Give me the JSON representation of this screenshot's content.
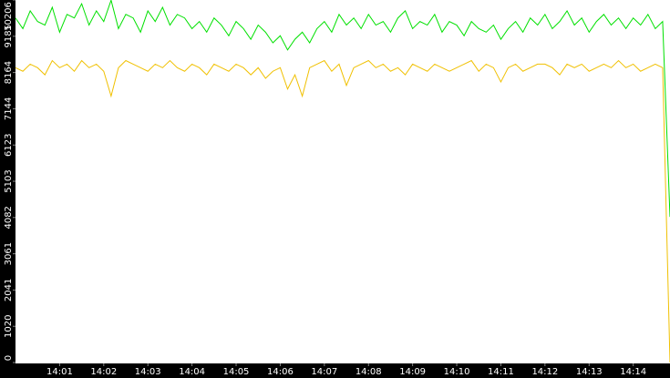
{
  "chart_data": {
    "type": "line",
    "categories": [
      null,
      null,
      null,
      null,
      null,
      null,
      "14:01",
      null,
      null,
      null,
      null,
      null,
      "14:02",
      null,
      null,
      null,
      null,
      null,
      "14:03",
      null,
      null,
      null,
      null,
      null,
      "14:04",
      null,
      null,
      null,
      null,
      null,
      "14:05",
      null,
      null,
      null,
      null,
      null,
      "14:06",
      null,
      null,
      null,
      null,
      null,
      "14:07",
      null,
      null,
      null,
      null,
      null,
      "14:08",
      null,
      null,
      null,
      null,
      null,
      "14:09",
      null,
      null,
      null,
      null,
      null,
      "14:10",
      null,
      null,
      null,
      null,
      null,
      "14:11",
      null,
      null,
      null,
      null,
      null,
      "14:12",
      null,
      null,
      null,
      null,
      null,
      "14:13",
      null,
      null,
      null,
      null,
      null,
      "14:14",
      null,
      null,
      null,
      null,
      null
    ],
    "series": [
      {
        "color": "#00e000",
        "values": [
          9700,
          9400,
          9900,
          9600,
          9500,
          10000,
          9300,
          9800,
          9700,
          10100,
          9500,
          9900,
          9600,
          10200,
          9400,
          9800,
          9700,
          9300,
          9900,
          9600,
          10000,
          9500,
          9800,
          9700,
          9400,
          9600,
          9300,
          9700,
          9500,
          9200,
          9600,
          9400,
          9100,
          9500,
          9300,
          9000,
          9200,
          8800,
          9100,
          9300,
          9000,
          9400,
          9600,
          9300,
          9800,
          9500,
          9700,
          9400,
          9800,
          9500,
          9600,
          9300,
          9700,
          9900,
          9400,
          9600,
          9500,
          9800,
          9300,
          9600,
          9500,
          9200,
          9600,
          9400,
          9300,
          9500,
          9100,
          9400,
          9600,
          9300,
          9700,
          9500,
          9800,
          9400,
          9600,
          9900,
          9500,
          9700,
          9300,
          9600,
          9800,
          9500,
          9700,
          9400,
          9700,
          9500,
          9800,
          9400,
          9600,
          4100
        ]
      },
      {
        "color": "#f0c000",
        "values": [
          8300,
          8200,
          8400,
          8300,
          8100,
          8500,
          8300,
          8400,
          8200,
          8500,
          8300,
          8400,
          8200,
          7500,
          8300,
          8500,
          8400,
          8300,
          8200,
          8400,
          8300,
          8500,
          8300,
          8200,
          8400,
          8300,
          8100,
          8400,
          8300,
          8200,
          8400,
          8300,
          8100,
          8300,
          8000,
          8200,
          8300,
          7700,
          8100,
          7500,
          8300,
          8400,
          8500,
          8200,
          8400,
          7800,
          8300,
          8400,
          8500,
          8300,
          8400,
          8200,
          8300,
          8100,
          8400,
          8300,
          8200,
          8400,
          8300,
          8200,
          8300,
          8400,
          8500,
          8200,
          8400,
          8300,
          7900,
          8300,
          8400,
          8200,
          8300,
          8400,
          8400,
          8300,
          8100,
          8400,
          8300,
          8400,
          8200,
          8300,
          8400,
          8300,
          8500,
          8300,
          8400,
          8200,
          8300,
          8400,
          8300,
          0
        ]
      }
    ],
    "ylim": [
      0,
      10206
    ],
    "yticks": [
      0,
      1020,
      2041,
      3061,
      4082,
      5103,
      6123,
      7144,
      8164,
      9185,
      10206
    ]
  }
}
